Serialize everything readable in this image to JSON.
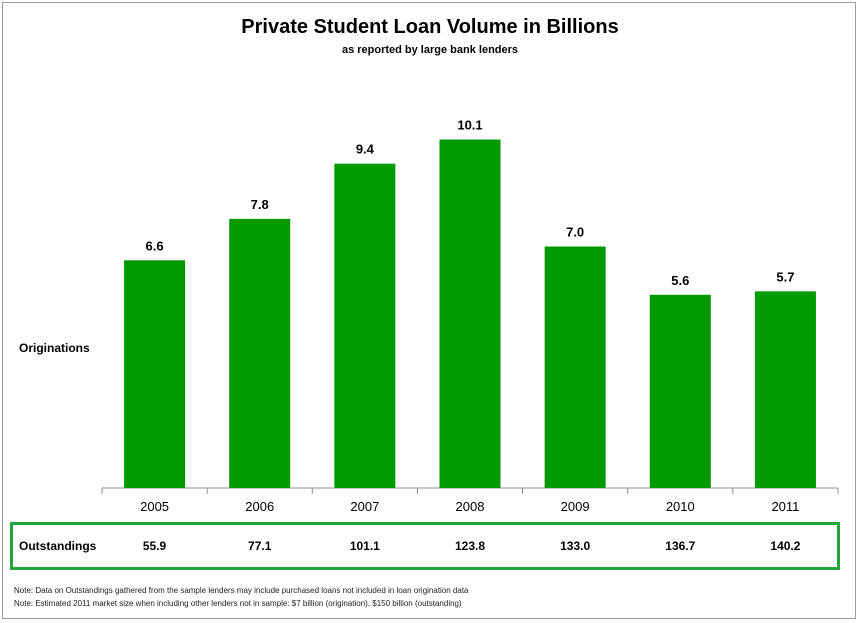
{
  "chart_data": {
    "type": "bar",
    "title": "Private Student Loan Volume in Billions",
    "subtitle": "as reported by large bank lenders",
    "series_label": "Originations",
    "categories": [
      "2005",
      "2006",
      "2007",
      "2008",
      "2009",
      "2010",
      "2011"
    ],
    "values": [
      6.6,
      7.8,
      9.4,
      10.1,
      7.0,
      5.6,
      5.7
    ],
    "value_labels": [
      "6.6",
      "7.8",
      "9.4",
      "10.1",
      "7.0",
      "5.6",
      "5.7"
    ],
    "ylim": [
      0,
      11
    ],
    "grid": false,
    "bar_color": "#009900"
  },
  "outstandings": {
    "label": "Outstandings",
    "values": [
      "55.9",
      "77.1",
      "101.1",
      "123.8",
      "133.0",
      "136.7",
      "140.2"
    ],
    "box_color": "#22a53a"
  },
  "notes": [
    "Note:  Data on Outstandings gathered from the sample lenders may include purchased loans not included in loan origination data",
    "Note:  Estimated 2011 market size when including other lenders not in sample: $7 billion (origination), $150 billion (outstanding)"
  ]
}
